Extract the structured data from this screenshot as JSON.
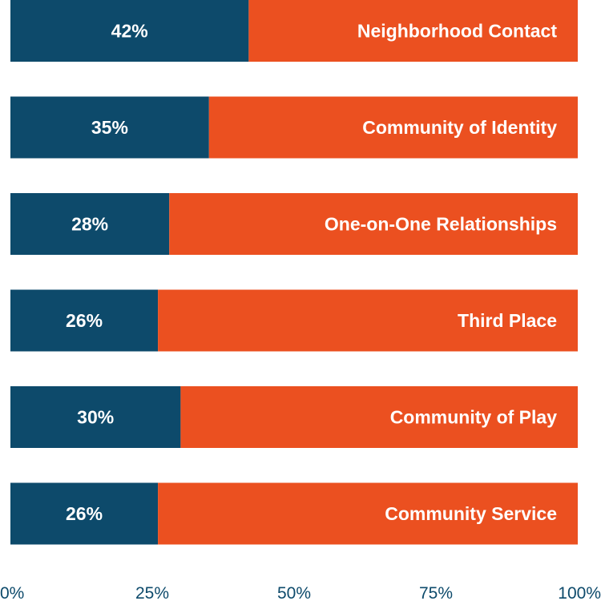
{
  "chart_data": {
    "type": "bar",
    "orientation": "horizontal",
    "stacked": "100%",
    "categories": [
      "Neighborhood Contact",
      "Community of Identity",
      "One-on-One Relationships",
      "Third Place",
      "Community of Play",
      "Community Service"
    ],
    "series": [
      {
        "values": [
          42,
          35,
          28,
          26,
          30,
          26
        ],
        "labels": [
          "42%",
          "35%",
          "28%",
          "26%",
          "30%",
          "26%"
        ]
      },
      {
        "values": [
          58,
          65,
          72,
          74,
          70,
          74
        ]
      }
    ],
    "xlim": [
      0,
      100
    ],
    "xticks": [
      "0%",
      "25%",
      "50%",
      "75%",
      "100%"
    ],
    "grid": false,
    "legend": "none",
    "colors": {
      "primary": "#0d4a6b",
      "remainder": "#eb5020",
      "tick_text": "#0d4a6b"
    }
  }
}
